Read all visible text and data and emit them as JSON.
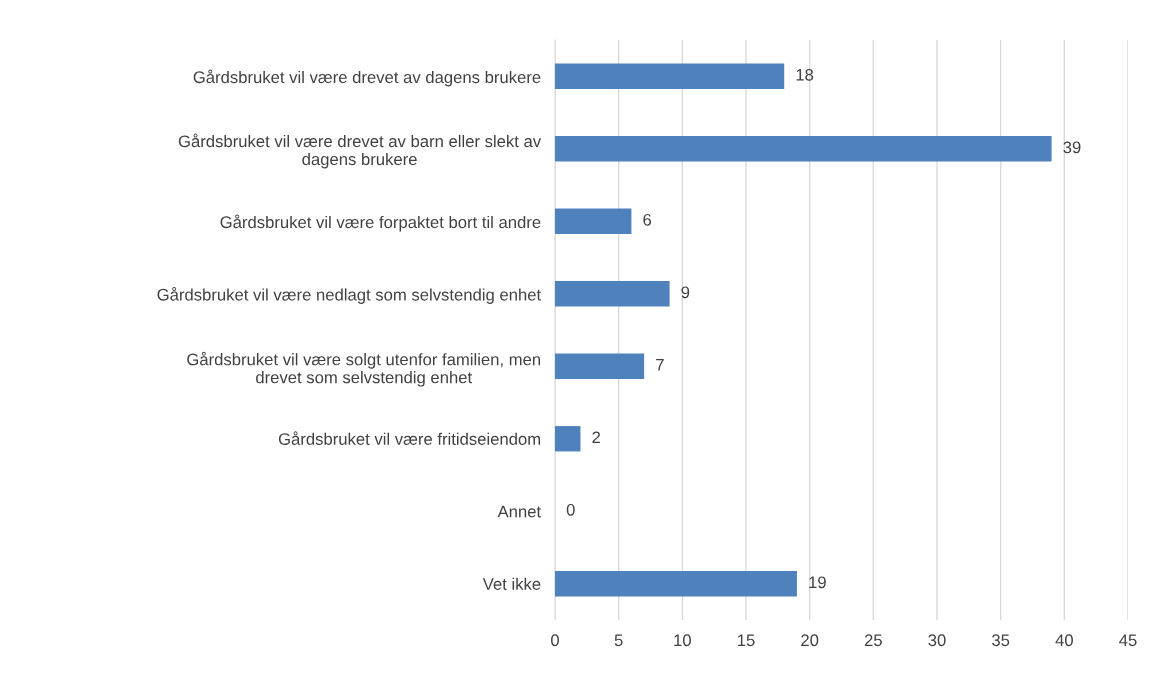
{
  "chart_data": {
    "type": "bar",
    "orientation": "horizontal",
    "categories": [
      "Gårdsbruket vil være drevet av dagens brukere",
      "Gårdsbruket vil være drevet av barn eller slekt av\ndagens brukere",
      "Gårdsbruket vil være forpaktet bort til andre",
      "Gårdsbruket vil være nedlagt som selvstendig enhet",
      "Gårdsbruket vil være solgt utenfor familien, men\ndrevet som selvstendig enhet",
      "Gårdsbruket vil være fritidseiendom",
      "Annet",
      "Vet ikke"
    ],
    "values": [
      18,
      39,
      6,
      9,
      7,
      2,
      0,
      19
    ],
    "color": "#4f81bd",
    "xlim": [
      0,
      45
    ],
    "xticks": [
      0,
      5,
      10,
      15,
      20,
      25,
      30,
      35,
      40,
      45
    ],
    "grid": "x",
    "data_labels": true
  }
}
